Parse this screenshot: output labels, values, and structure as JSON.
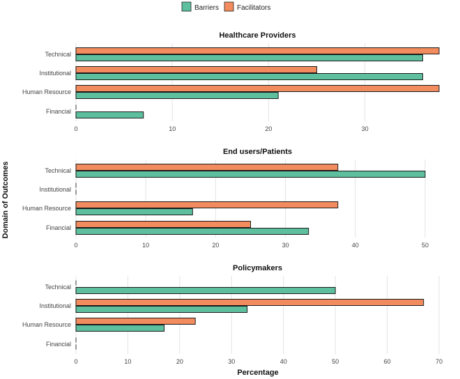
{
  "legend": {
    "items": [
      {
        "name": "Barriers",
        "color": "#5dbf9e"
      },
      {
        "name": "Facilitators",
        "color": "#f28c5e"
      }
    ]
  },
  "axes": {
    "xlabel": "Percentage",
    "ylabel": "Domain of Outcomes"
  },
  "chart_data": [
    {
      "type": "bar",
      "orientation": "horizontal",
      "title": "Healthcare Providers",
      "categories": [
        "Technical",
        "Institutional",
        "Human Resource",
        "Financial"
      ],
      "series": [
        {
          "name": "Facilitators",
          "values": [
            37.7,
            25.0,
            37.7,
            0
          ]
        },
        {
          "name": "Barriers",
          "values": [
            36.0,
            36.0,
            21.0,
            7.0
          ]
        }
      ],
      "xlim": [
        0,
        37.7
      ],
      "xticks": [
        0,
        10,
        20,
        30
      ]
    },
    {
      "type": "bar",
      "orientation": "horizontal",
      "title": "End users/Patients",
      "categories": [
        "Technical",
        "Institutional",
        "Human Resource",
        "Financial"
      ],
      "series": [
        {
          "name": "Facilitators",
          "values": [
            37.5,
            0,
            37.5,
            25.0
          ]
        },
        {
          "name": "Barriers",
          "values": [
            50.0,
            0,
            16.7,
            33.3
          ]
        }
      ],
      "xlim": [
        0,
        52
      ],
      "xticks": [
        0,
        10,
        20,
        30,
        40,
        50
      ]
    },
    {
      "type": "bar",
      "orientation": "horizontal",
      "title": "Policymakers",
      "categories": [
        "Technical",
        "Institutional",
        "Human Resource",
        "Financial"
      ],
      "series": [
        {
          "name": "Facilitators",
          "values": [
            0,
            67.0,
            23.0,
            0
          ]
        },
        {
          "name": "Barriers",
          "values": [
            50.0,
            33.0,
            17.0,
            0
          ]
        }
      ],
      "xlim": [
        0,
        70
      ],
      "xticks": [
        0,
        10,
        20,
        30,
        40,
        50,
        60,
        70
      ]
    }
  ]
}
